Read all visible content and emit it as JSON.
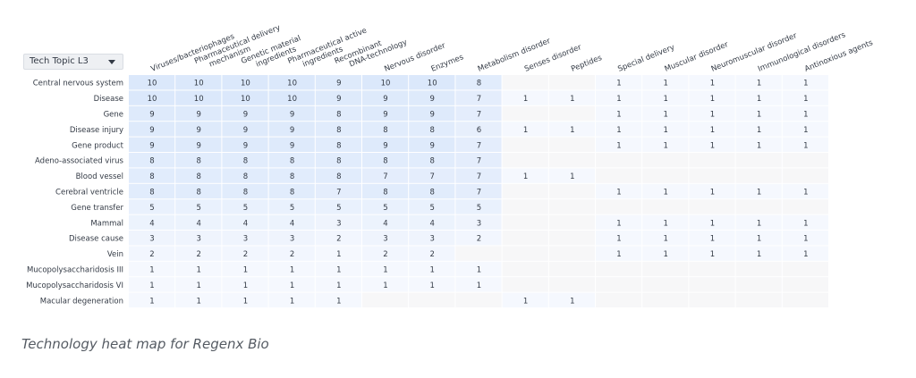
{
  "dropdown": {
    "selected": "Tech Topic L3",
    "icon": "chevron-down-icon"
  },
  "caption": "Technology heat map for Regenx Bio",
  "colors": {
    "cell_high": "#dbe8fb",
    "cell_low": "#f5f8fe",
    "cell_empty": "#f7f7f8",
    "text": "#333a45"
  },
  "chart_data": {
    "type": "heatmap",
    "title": "",
    "columns": [
      "Viruses/bacteriophages",
      "Pharmaceutical delivery mechanism",
      "Genetic material ingredients",
      "Pharmaceutical active ingredients",
      "Recombinant DNA-technology",
      "Nervous disorder",
      "Enzymes",
      "Metabolism disorder",
      "Senses disorder",
      "Peptides",
      "Special delivery",
      "Muscular disorder",
      "Neuromuscular disorder",
      "Immunological disorders",
      "Antinoxious agents"
    ],
    "rows": [
      "Central nervous system",
      "Disease",
      "Gene",
      "Disease injury",
      "Gene product",
      "Adeno-associated virus",
      "Blood vessel",
      "Cerebral ventricle",
      "Gene transfer",
      "Mammal",
      "Disease cause",
      "Vein",
      "Mucopolysaccharidosis III",
      "Mucopolysaccharidosis VI",
      "Macular degeneration"
    ],
    "values": [
      [
        10,
        10,
        10,
        10,
        9,
        10,
        10,
        8,
        null,
        null,
        1,
        1,
        1,
        1,
        1
      ],
      [
        10,
        10,
        10,
        10,
        9,
        9,
        9,
        7,
        1,
        1,
        1,
        1,
        1,
        1,
        1
      ],
      [
        9,
        9,
        9,
        9,
        8,
        9,
        9,
        7,
        null,
        null,
        1,
        1,
        1,
        1,
        1
      ],
      [
        9,
        9,
        9,
        9,
        8,
        8,
        8,
        6,
        1,
        1,
        1,
        1,
        1,
        1,
        1
      ],
      [
        9,
        9,
        9,
        9,
        8,
        9,
        9,
        7,
        null,
        null,
        1,
        1,
        1,
        1,
        1
      ],
      [
        8,
        8,
        8,
        8,
        8,
        8,
        8,
        7,
        null,
        null,
        null,
        null,
        null,
        null,
        null
      ],
      [
        8,
        8,
        8,
        8,
        8,
        7,
        7,
        7,
        1,
        1,
        null,
        null,
        null,
        null,
        null
      ],
      [
        8,
        8,
        8,
        8,
        7,
        8,
        8,
        7,
        null,
        null,
        1,
        1,
        1,
        1,
        1
      ],
      [
        5,
        5,
        5,
        5,
        5,
        5,
        5,
        5,
        null,
        null,
        null,
        null,
        null,
        null,
        null
      ],
      [
        4,
        4,
        4,
        4,
        3,
        4,
        4,
        3,
        null,
        null,
        1,
        1,
        1,
        1,
        1
      ],
      [
        3,
        3,
        3,
        3,
        2,
        3,
        3,
        2,
        null,
        null,
        1,
        1,
        1,
        1,
        1
      ],
      [
        2,
        2,
        2,
        2,
        1,
        2,
        2,
        null,
        null,
        null,
        1,
        1,
        1,
        1,
        1
      ],
      [
        1,
        1,
        1,
        1,
        1,
        1,
        1,
        1,
        null,
        null,
        null,
        null,
        null,
        null,
        null
      ],
      [
        1,
        1,
        1,
        1,
        1,
        1,
        1,
        1,
        null,
        null,
        null,
        null,
        null,
        null,
        null
      ],
      [
        1,
        1,
        1,
        1,
        1,
        null,
        null,
        null,
        1,
        1,
        null,
        null,
        null,
        null,
        null
      ]
    ],
    "value_range": [
      1,
      10
    ],
    "legend": "none",
    "grid": false
  }
}
